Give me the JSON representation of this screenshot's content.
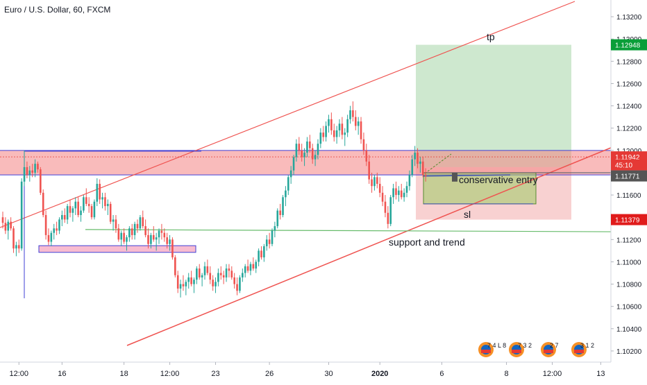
{
  "header": {
    "title": "Euro / U.S. Dollar, 60, FXCM"
  },
  "colors": {
    "up": "#26a69a",
    "down": "#ef5350",
    "tp_zone": "#a5d6a7",
    "sl_zone": "#ef9a9a",
    "resistance_zone": "#f48484",
    "entry_zone": "#9ccc65",
    "channel_line": "#ef5350",
    "blue_line": "#3f3fd6",
    "green_line": "#4caf50",
    "tp_tag": "#0a9e39",
    "sl_tag": "#e01b1b",
    "current_tag": "#555555"
  },
  "chart_data": {
    "type": "candlestick",
    "symbol": "Euro / U.S. Dollar",
    "interval": "60",
    "source": "FXCM",
    "y_axis": {
      "min": 1.101,
      "max": 1.1335,
      "ticks": [
        {
          "value": 1.102,
          "label": "1.10200"
        },
        {
          "value": 1.104,
          "label": "1.10400"
        },
        {
          "value": 1.106,
          "label": "1.10600"
        },
        {
          "value": 1.108,
          "label": "1.10800"
        },
        {
          "value": 1.11,
          "label": "1.11000"
        },
        {
          "value": 1.112,
          "label": "1.11200"
        },
        {
          "value": 1.114,
          "label": "1.11400"
        },
        {
          "value": 1.116,
          "label": "1.11600"
        },
        {
          "value": 1.118,
          "label": "1.11800"
        },
        {
          "value": 1.12,
          "label": "1.12000"
        },
        {
          "value": 1.122,
          "label": "1.12200"
        },
        {
          "value": 1.124,
          "label": "1.12400"
        },
        {
          "value": 1.126,
          "label": "1.12600"
        },
        {
          "value": 1.128,
          "label": "1.12800"
        },
        {
          "value": 1.13,
          "label": "1.13000"
        },
        {
          "value": 1.132,
          "label": "1.13200"
        }
      ]
    },
    "x_axis": {
      "ticks": [
        {
          "index": 6,
          "label": "12:00"
        },
        {
          "index": 22,
          "label": "16"
        },
        {
          "index": 45,
          "label": "18"
        },
        {
          "index": 62,
          "label": "12:00"
        },
        {
          "index": 79,
          "label": "23"
        },
        {
          "index": 99,
          "label": "26"
        },
        {
          "index": 121,
          "label": "30"
        },
        {
          "index": 140,
          "label": "2020",
          "bold": true
        },
        {
          "index": 163,
          "label": "6"
        },
        {
          "index": 187,
          "label": "8"
        },
        {
          "index": 204,
          "label": "12:00"
        },
        {
          "index": 222,
          "label": "13"
        }
      ]
    },
    "price_tags": [
      {
        "value": 1.12948,
        "label": "1.12948",
        "kind": "tp"
      },
      {
        "value": 1.11942,
        "label": "1.11942",
        "kind": "zone"
      },
      {
        "value": 1.1187,
        "label": "45:10",
        "kind": "timer"
      },
      {
        "value": 1.11771,
        "label": "1.11771",
        "kind": "current"
      },
      {
        "value": 1.11379,
        "label": "1.11379",
        "kind": "sl"
      }
    ],
    "annotations": [
      {
        "id": "tp",
        "text": "tp"
      },
      {
        "id": "sl",
        "text": "sl"
      },
      {
        "id": "entry",
        "text": "conservative entry"
      },
      {
        "id": "support",
        "text": "support and trend"
      }
    ],
    "events": [
      {
        "label": "7 4 L 8"
      },
      {
        "label": "7 3 2"
      },
      {
        "label": "2 7"
      },
      {
        "label": "3 1 2"
      }
    ],
    "candles": [
      [
        1.114,
        1.1145,
        1.113,
        1.1135
      ],
      [
        1.1135,
        1.114,
        1.1125,
        1.1128
      ],
      [
        1.1128,
        1.1138,
        1.112,
        1.1136
      ],
      [
        1.1136,
        1.114,
        1.1128,
        1.113
      ],
      [
        1.113,
        1.1132,
        1.1108,
        1.1112
      ],
      [
        1.1112,
        1.1118,
        1.1105,
        1.1115
      ],
      [
        1.1115,
        1.112,
        1.1108,
        1.1112
      ],
      [
        1.1112,
        1.1175,
        1.111,
        1.1172
      ],
      [
        1.1172,
        1.12,
        1.1168,
        1.1185
      ],
      [
        1.1185,
        1.119,
        1.1175,
        1.1178
      ],
      [
        1.1178,
        1.1186,
        1.1172,
        1.1182
      ],
      [
        1.1182,
        1.1188,
        1.1176,
        1.118
      ],
      [
        1.118,
        1.1192,
        1.1176,
        1.1188
      ],
      [
        1.1188,
        1.119,
        1.118,
        1.1183
      ],
      [
        1.1183,
        1.1185,
        1.116,
        1.1162
      ],
      [
        1.1162,
        1.1165,
        1.114,
        1.1142
      ],
      [
        1.1142,
        1.1146,
        1.112,
        1.1124
      ],
      [
        1.1124,
        1.113,
        1.1115,
        1.1118
      ],
      [
        1.1118,
        1.1128,
        1.1114,
        1.1126
      ],
      [
        1.1126,
        1.1134,
        1.112,
        1.113
      ],
      [
        1.113,
        1.1136,
        1.1124,
        1.1128
      ],
      [
        1.1128,
        1.114,
        1.1125,
        1.1138
      ],
      [
        1.1138,
        1.1146,
        1.1132,
        1.1142
      ],
      [
        1.1142,
        1.1148,
        1.1135,
        1.1138
      ],
      [
        1.1138,
        1.1152,
        1.1134,
        1.115
      ],
      [
        1.115,
        1.1156,
        1.114,
        1.1144
      ],
      [
        1.1144,
        1.115,
        1.1136,
        1.1148
      ],
      [
        1.1148,
        1.1158,
        1.1142,
        1.1154
      ],
      [
        1.1154,
        1.1158,
        1.114,
        1.1142
      ],
      [
        1.1142,
        1.115,
        1.1136,
        1.1146
      ],
      [
        1.1146,
        1.116,
        1.1144,
        1.1158
      ],
      [
        1.1158,
        1.1166,
        1.115,
        1.1152
      ],
      [
        1.1152,
        1.1158,
        1.1144,
        1.115
      ],
      [
        1.115,
        1.1152,
        1.1138,
        1.114
      ],
      [
        1.114,
        1.1156,
        1.1138,
        1.1154
      ],
      [
        1.1154,
        1.1175,
        1.115,
        1.117
      ],
      [
        1.117,
        1.1174,
        1.1152,
        1.1156
      ],
      [
        1.1156,
        1.1162,
        1.1148,
        1.1158
      ],
      [
        1.1158,
        1.1162,
        1.1146,
        1.115
      ],
      [
        1.115,
        1.1156,
        1.1142,
        1.1152
      ],
      [
        1.1152,
        1.1154,
        1.1134,
        1.1136
      ],
      [
        1.1136,
        1.1142,
        1.1128,
        1.1138
      ],
      [
        1.1138,
        1.1142,
        1.1126,
        1.113
      ],
      [
        1.113,
        1.1134,
        1.1118,
        1.112
      ],
      [
        1.112,
        1.1128,
        1.1114,
        1.1126
      ],
      [
        1.1126,
        1.113,
        1.1116,
        1.1118
      ],
      [
        1.1118,
        1.1124,
        1.111,
        1.1122
      ],
      [
        1.1122,
        1.1132,
        1.1118,
        1.113
      ],
      [
        1.113,
        1.1134,
        1.112,
        1.1124
      ],
      [
        1.1124,
        1.1136,
        1.112,
        1.1134
      ],
      [
        1.1134,
        1.1138,
        1.1126,
        1.113
      ],
      [
        1.113,
        1.1142,
        1.1128,
        1.114
      ],
      [
        1.114,
        1.1146,
        1.113,
        1.1132
      ],
      [
        1.1132,
        1.1138,
        1.1122,
        1.1124
      ],
      [
        1.1124,
        1.113,
        1.1112,
        1.1116
      ],
      [
        1.1116,
        1.1126,
        1.1112,
        1.1124
      ],
      [
        1.1124,
        1.1132,
        1.1118,
        1.112
      ],
      [
        1.112,
        1.1126,
        1.111,
        1.1122
      ],
      [
        1.1122,
        1.113,
        1.1116,
        1.1128
      ],
      [
        1.1128,
        1.1134,
        1.112,
        1.1126
      ],
      [
        1.1126,
        1.113,
        1.1118,
        1.1122
      ],
      [
        1.1122,
        1.1126,
        1.1112,
        1.1116
      ],
      [
        1.1116,
        1.1124,
        1.111,
        1.112
      ],
      [
        1.112,
        1.1122,
        1.1102,
        1.1104
      ],
      [
        1.1104,
        1.1106,
        1.1086,
        1.1088
      ],
      [
        1.1088,
        1.1092,
        1.1072,
        1.1076
      ],
      [
        1.1076,
        1.1084,
        1.1068,
        1.108
      ],
      [
        1.108,
        1.1088,
        1.1074,
        1.1078
      ],
      [
        1.1078,
        1.1084,
        1.107,
        1.1082
      ],
      [
        1.1082,
        1.109,
        1.1076,
        1.1086
      ],
      [
        1.1086,
        1.1092,
        1.1078,
        1.108
      ],
      [
        1.108,
        1.1086,
        1.1072,
        1.1084
      ],
      [
        1.1084,
        1.1096,
        1.108,
        1.1094
      ],
      [
        1.1094,
        1.1098,
        1.1084,
        1.1086
      ],
      [
        1.1086,
        1.109,
        1.1078,
        1.1088
      ],
      [
        1.1088,
        1.11,
        1.1084,
        1.1096
      ],
      [
        1.1096,
        1.1102,
        1.1088,
        1.109
      ],
      [
        1.109,
        1.1096,
        1.108,
        1.1084
      ],
      [
        1.1084,
        1.1088,
        1.1074,
        1.1078
      ],
      [
        1.1078,
        1.1086,
        1.1072,
        1.1082
      ],
      [
        1.1082,
        1.1094,
        1.1078,
        1.109
      ],
      [
        1.109,
        1.1096,
        1.1084,
        1.1088
      ],
      [
        1.1088,
        1.1092,
        1.108,
        1.1086
      ],
      [
        1.1086,
        1.1098,
        1.1082,
        1.1094
      ],
      [
        1.1094,
        1.1098,
        1.1086,
        1.1092
      ],
      [
        1.1092,
        1.1096,
        1.1084,
        1.1086
      ],
      [
        1.1086,
        1.109,
        1.1076,
        1.108
      ],
      [
        1.108,
        1.1086,
        1.107,
        1.1074
      ],
      [
        1.1074,
        1.1088,
        1.1072,
        1.1086
      ],
      [
        1.1086,
        1.1094,
        1.1082,
        1.109
      ],
      [
        1.109,
        1.1098,
        1.1086,
        1.1096
      ],
      [
        1.1096,
        1.1102,
        1.109,
        1.1092
      ],
      [
        1.1092,
        1.11,
        1.1088,
        1.1098
      ],
      [
        1.1098,
        1.1104,
        1.1092,
        1.1094
      ],
      [
        1.1094,
        1.1102,
        1.109,
        1.11
      ],
      [
        1.11,
        1.1112,
        1.1096,
        1.111
      ],
      [
        1.111,
        1.1114,
        1.1102,
        1.1104
      ],
      [
        1.1104,
        1.1116,
        1.11,
        1.1114
      ],
      [
        1.1114,
        1.1124,
        1.111,
        1.112
      ],
      [
        1.112,
        1.1126,
        1.1112,
        1.1116
      ],
      [
        1.1116,
        1.113,
        1.1114,
        1.1128
      ],
      [
        1.1128,
        1.1136,
        1.1122,
        1.1132
      ],
      [
        1.1132,
        1.1148,
        1.113,
        1.1146
      ],
      [
        1.1146,
        1.1152,
        1.1138,
        1.1142
      ],
      [
        1.1142,
        1.116,
        1.114,
        1.1158
      ],
      [
        1.1158,
        1.1168,
        1.115,
        1.1164
      ],
      [
        1.1164,
        1.1178,
        1.116,
        1.1176
      ],
      [
        1.1176,
        1.1186,
        1.117,
        1.1182
      ],
      [
        1.1182,
        1.1196,
        1.1178,
        1.1194
      ],
      [
        1.1194,
        1.121,
        1.119,
        1.1206
      ],
      [
        1.1206,
        1.1212,
        1.1196,
        1.12
      ],
      [
        1.12,
        1.1206,
        1.119,
        1.1194
      ],
      [
        1.1194,
        1.1202,
        1.1186,
        1.1198
      ],
      [
        1.1198,
        1.1212,
        1.1194,
        1.1208
      ],
      [
        1.1208,
        1.1214,
        1.1198,
        1.1202
      ],
      [
        1.1202,
        1.1206,
        1.1188,
        1.1192
      ],
      [
        1.1192,
        1.12,
        1.1186,
        1.1196
      ],
      [
        1.1196,
        1.121,
        1.1192,
        1.1206
      ],
      [
        1.1206,
        1.122,
        1.1202,
        1.1216
      ],
      [
        1.1216,
        1.1222,
        1.1208,
        1.1212
      ],
      [
        1.1212,
        1.1226,
        1.1208,
        1.1222
      ],
      [
        1.1222,
        1.1232,
        1.1216,
        1.1228
      ],
      [
        1.1228,
        1.1234,
        1.1214,
        1.1218
      ],
      [
        1.1218,
        1.1224,
        1.1208,
        1.1212
      ],
      [
        1.1212,
        1.1222,
        1.1206,
        1.1218
      ],
      [
        1.1218,
        1.1228,
        1.1212,
        1.1224
      ],
      [
        1.1224,
        1.123,
        1.121,
        1.1214
      ],
      [
        1.1214,
        1.122,
        1.1204,
        1.1216
      ],
      [
        1.1216,
        1.1232,
        1.1212,
        1.1228
      ],
      [
        1.1228,
        1.124,
        1.1224,
        1.1236
      ],
      [
        1.1236,
        1.1244,
        1.1226,
        1.123
      ],
      [
        1.123,
        1.1236,
        1.1218,
        1.1222
      ],
      [
        1.1222,
        1.123,
        1.1214,
        1.1226
      ],
      [
        1.1226,
        1.123,
        1.1206,
        1.121
      ],
      [
        1.121,
        1.1216,
        1.1196,
        1.12
      ],
      [
        1.12,
        1.1206,
        1.1186,
        1.119
      ],
      [
        1.119,
        1.1196,
        1.117,
        1.1174
      ],
      [
        1.1174,
        1.118,
        1.1162,
        1.1168
      ],
      [
        1.1168,
        1.1178,
        1.1164,
        1.1176
      ],
      [
        1.1176,
        1.118,
        1.1166,
        1.117
      ],
      [
        1.117,
        1.1176,
        1.1158,
        1.1162
      ],
      [
        1.1162,
        1.1168,
        1.115,
        1.1154
      ],
      [
        1.1154,
        1.116,
        1.114,
        1.1144
      ],
      [
        1.1144,
        1.115,
        1.113,
        1.1134
      ],
      [
        1.1134,
        1.116,
        1.1132,
        1.1158
      ],
      [
        1.1158,
        1.117,
        1.1152,
        1.1166
      ],
      [
        1.1166,
        1.1172,
        1.1156,
        1.116
      ],
      [
        1.116,
        1.1168,
        1.1154,
        1.1164
      ],
      [
        1.1164,
        1.117,
        1.1156,
        1.1158
      ],
      [
        1.1158,
        1.1166,
        1.1154,
        1.1162
      ],
      [
        1.1162,
        1.1172,
        1.1158,
        1.1168
      ],
      [
        1.1168,
        1.1182,
        1.1164,
        1.1178
      ],
      [
        1.1178,
        1.1196,
        1.1176,
        1.1192
      ],
      [
        1.1192,
        1.1204,
        1.1186,
        1.1198
      ],
      [
        1.1198,
        1.1202,
        1.1184,
        1.1188
      ],
      [
        1.1188,
        1.1194,
        1.118,
        1.119
      ],
      [
        1.119,
        1.1194,
        1.1176,
        1.1178
      ],
      [
        1.1178,
        1.1184,
        1.1172,
        1.1177
      ]
    ]
  }
}
